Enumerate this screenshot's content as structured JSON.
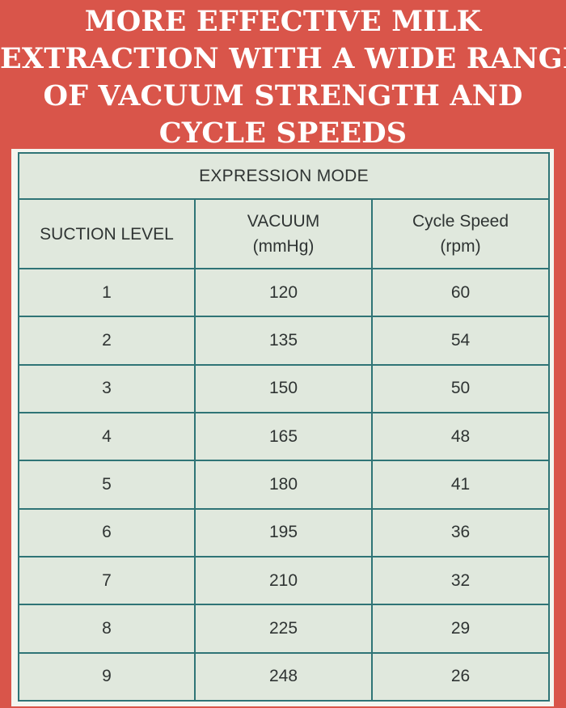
{
  "headline": {
    "lines": [
      "MORE EFFECTIVE MILK",
      "EXTRACTION WITH A WIDE RANGE",
      "OF VACUUM STRENGTH AND",
      "CYCLE SPEEDS"
    ]
  },
  "table": {
    "mode_title": "EXPRESSION MODE",
    "headers": {
      "suction_level": "SUCTION LEVEL",
      "vacuum": [
        "VACUUM",
        "(mmHg)"
      ],
      "cycle_speed": [
        "Cycle Speed",
        "(rpm)"
      ]
    },
    "rows": [
      {
        "level": "1",
        "vacuum": "120",
        "cycle": "60"
      },
      {
        "level": "2",
        "vacuum": "135",
        "cycle": "54"
      },
      {
        "level": "3",
        "vacuum": "150",
        "cycle": "50"
      },
      {
        "level": "4",
        "vacuum": "165",
        "cycle": "48"
      },
      {
        "level": "5",
        "vacuum": "180",
        "cycle": "41"
      },
      {
        "level": "6",
        "vacuum": "195",
        "cycle": "36"
      },
      {
        "level": "7",
        "vacuum": "210",
        "cycle": "32"
      },
      {
        "level": "8",
        "vacuum": "225",
        "cycle": "29"
      },
      {
        "level": "9",
        "vacuum": "248",
        "cycle": "26"
      }
    ]
  },
  "colors": {
    "background": "#d9554a",
    "table_fill": "#e0e8dd",
    "grid_lines": "#2f7476",
    "text": "#2f3433",
    "headline_text": "#ffffff"
  }
}
